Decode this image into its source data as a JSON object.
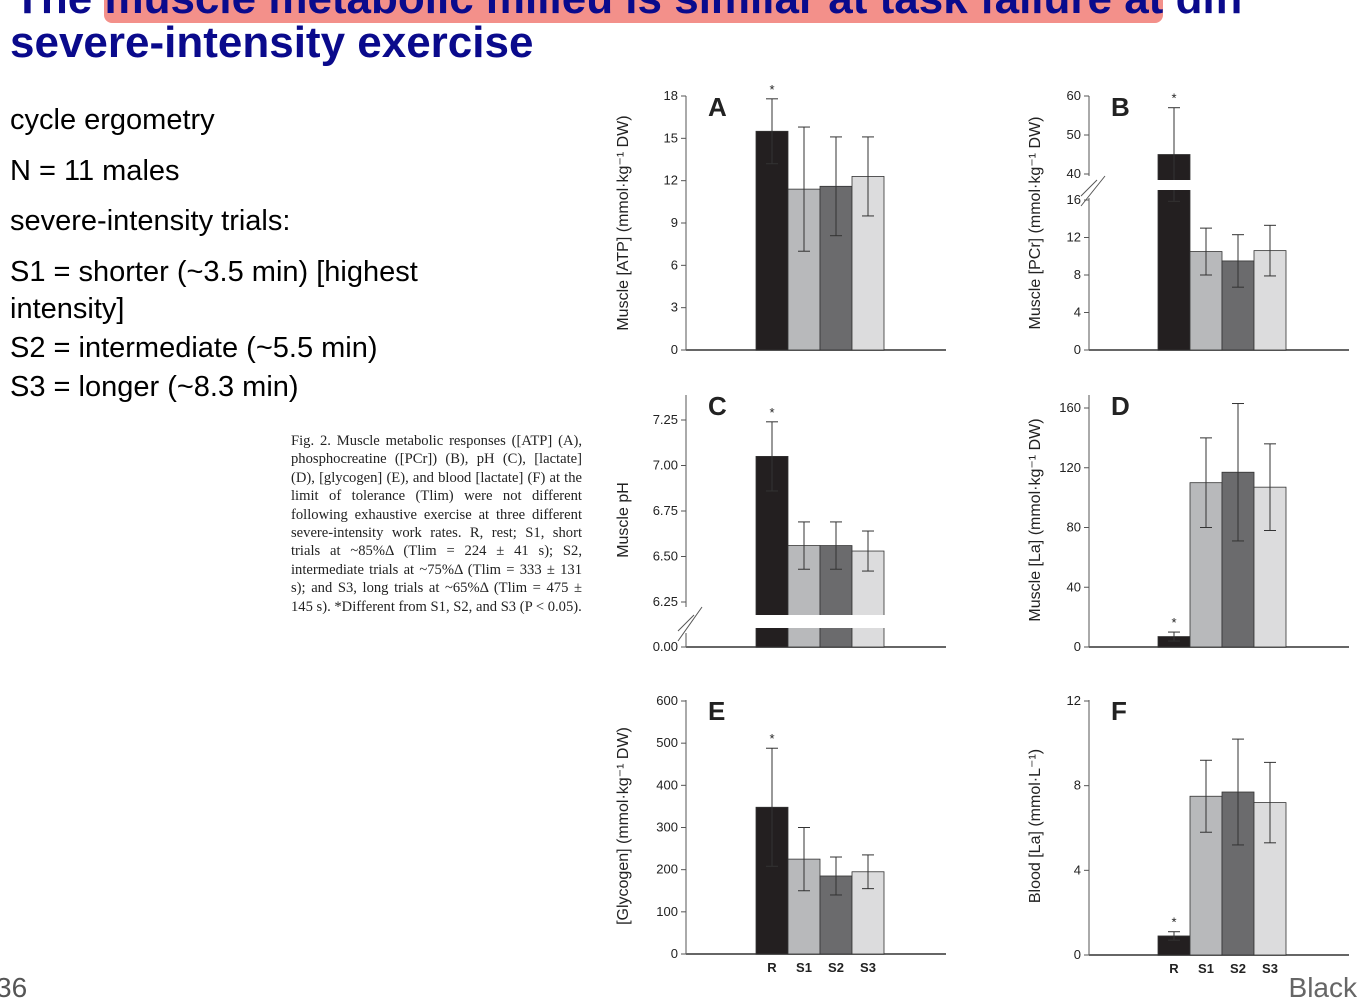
{
  "title": {
    "line1_prefix": "The ",
    "line1_highlight": "muscle metabolic milieu is similar at task failure at",
    "line1_suffix": " diff",
    "line2": "severe-intensity exercise"
  },
  "bullets": [
    "cycle ergometry",
    "N = 11 males",
    "severe-intensity trials:",
    "S1 = shorter (~3.5 min) [highest",
    "intensity]",
    "S2 = intermediate (~5.5 min)",
    "S3 = longer (~8.3 min)"
  ],
  "caption": "Fig. 2. Muscle metabolic responses ([ATP] (A), phosphocreatine ([PCr]) (B), pH (C), [lactate] (D), [glycogen] (E), and blood [lactate] (F) at the limit of tolerance (Tlim) were not different following exhaustive exercise at three different severe-intensity work rates. R, rest; S1, short trials at ~85%Δ (Tlim = 224 ± 41 s); S2, intermediate trials at ~75%Δ (Tlim = 333 ± 131 s); and S3, long trials at ~65%Δ (Tlim = 475 ± 145 s). *Different from S1, S2, and S3 (P < 0.05).",
  "footer": {
    "page_number": "36",
    "right_text": "Black"
  },
  "colors": {
    "R": "#231f20",
    "S1": "#b8b9bb",
    "S2": "#6b6b6d",
    "S3": "#dcdcdd"
  },
  "chart_data": [
    {
      "type": "bar",
      "panel": "A",
      "ylabel": "Muscle [ATP] (mmol·kg⁻¹ DW)",
      "categories": [
        "R",
        "S1",
        "S2",
        "S3"
      ],
      "values": [
        15.5,
        11.4,
        11.6,
        12.3
      ],
      "errors": [
        2.3,
        4.4,
        3.5,
        2.8
      ],
      "significant": [
        "*",
        "",
        "",
        ""
      ],
      "yticks": [
        "0",
        "3",
        "6",
        "9",
        "12",
        "15",
        "18"
      ],
      "ylim": [
        0,
        18
      ]
    },
    {
      "type": "bar",
      "panel": "B",
      "ylabel": "Muscle [PCr] (mmol·kg⁻¹ DW)",
      "categories": [
        "R",
        "S1",
        "S2",
        "S3"
      ],
      "values": [
        45,
        10.5,
        9.5,
        10.6
      ],
      "errors": [
        12,
        2.5,
        2.8,
        2.7
      ],
      "significant": [
        "*",
        "",
        "",
        ""
      ],
      "yticks": [
        "0",
        "4",
        "8",
        "12",
        "16",
        "40",
        "50",
        "60"
      ],
      "ylim": [
        0,
        60
      ],
      "axis_break": [
        16,
        40
      ]
    },
    {
      "type": "bar",
      "panel": "C",
      "ylabel": "Muscle pH",
      "categories": [
        "R",
        "S1",
        "S2",
        "S3"
      ],
      "values": [
        7.05,
        6.56,
        6.56,
        6.53
      ],
      "errors": [
        0.19,
        0.13,
        0.13,
        0.11
      ],
      "significant": [
        "*",
        "",
        "",
        ""
      ],
      "yticks": [
        "0.00",
        "6.25",
        "6.50",
        "6.75",
        "7.00",
        "7.25"
      ],
      "ylim": [
        0,
        7.25
      ],
      "axis_break": [
        0,
        6.25
      ]
    },
    {
      "type": "bar",
      "panel": "D",
      "ylabel": "Muscle [La] (mmol·kg⁻¹ DW)",
      "categories": [
        "R",
        "S1",
        "S2",
        "S3"
      ],
      "values": [
        7,
        110,
        117,
        107
      ],
      "errors": [
        3,
        30,
        46,
        29
      ],
      "significant": [
        "*",
        "",
        "",
        ""
      ],
      "yticks": [
        "0",
        "40",
        "80",
        "120",
        "160"
      ],
      "ylim": [
        0,
        160
      ]
    },
    {
      "type": "bar",
      "panel": "E",
      "ylabel": "[Glycogen] (mmol·kg⁻¹ DW)",
      "categories": [
        "R",
        "S1",
        "S2",
        "S3"
      ],
      "values": [
        348,
        225,
        185,
        195
      ],
      "errors": [
        140,
        75,
        45,
        40
      ],
      "significant": [
        "*",
        "",
        "",
        ""
      ],
      "yticks": [
        "0",
        "100",
        "200",
        "300",
        "400",
        "500",
        "600"
      ],
      "ylim": [
        0,
        600
      ]
    },
    {
      "type": "bar",
      "panel": "F",
      "ylabel": "Blood [La] (mmol·L⁻¹)",
      "categories": [
        "R",
        "S1",
        "S2",
        "S3"
      ],
      "values": [
        0.9,
        7.5,
        7.7,
        7.2
      ],
      "errors": [
        0.2,
        1.7,
        2.5,
        1.9
      ],
      "significant": [
        "*",
        "",
        "",
        ""
      ],
      "yticks": [
        "0",
        "4",
        "8",
        "12"
      ],
      "ylim": [
        0,
        12
      ]
    }
  ]
}
